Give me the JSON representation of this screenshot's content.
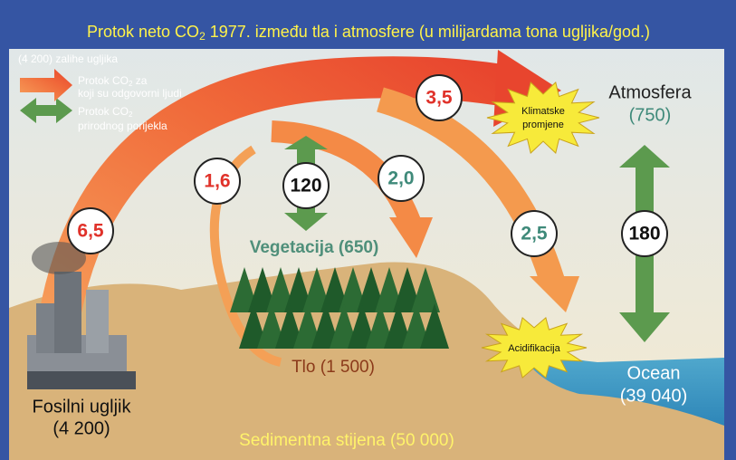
{
  "header": {
    "title": {
      "before": "Protok neto CO",
      "sub": "2",
      "after": " 1977. između tla i atmosfere (u milijardama tona ugljika/god.)"
    }
  },
  "legend": {
    "stock": "(4 200) zalihe ugljika",
    "human": {
      "before": "Protok CO",
      "sub": "2",
      "after": " za",
      "line2": "koji su odgovorni ljudi"
    },
    "natural": {
      "before": "Protok CO",
      "sub": "2",
      "line2": "prirodnog porijekla"
    }
  },
  "flows": {
    "fossil": "6,5",
    "soil": "1,6",
    "vegetation_exchange": "120",
    "uptake_vegetation": "2,0",
    "atmosphere_net": "3,5",
    "uptake_ocean": "2,5",
    "ocean_exchange": "180"
  },
  "nodes": {
    "atmosphere": {
      "name": "Atmosfera",
      "stock": "(750)"
    },
    "vegetation": "Vegetacija (650)",
    "soil": "Tlo (1 500)",
    "ocean": {
      "name": "Ocean",
      "stock": "(39 040)"
    },
    "fossil": {
      "name": "Fosilni ugljik",
      "stock": "(4 200)"
    },
    "sediment": "Sedimentna stijena (50 000)"
  },
  "effects": {
    "climate": {
      "line1": "Klimatske",
      "line2": "promjene"
    },
    "acidification": "Acidifikacija"
  }
}
